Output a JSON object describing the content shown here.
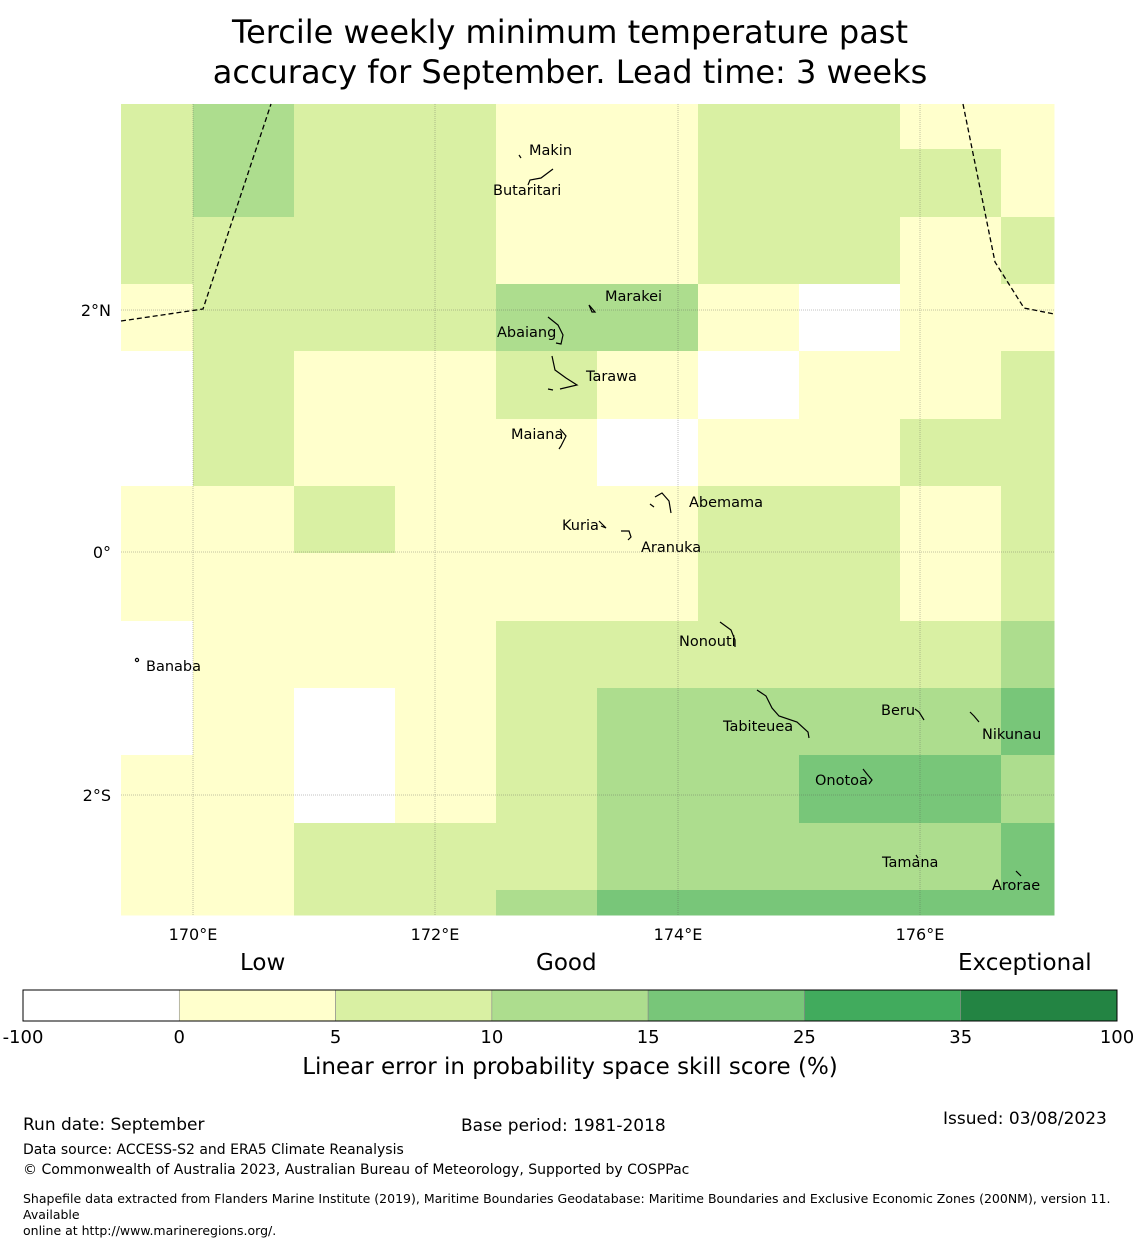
{
  "title_line1": "Tercile weekly minimum temperature past",
  "title_line2": "accuracy for September. Lead time: 3 weeks",
  "map": {
    "lon_ticks": [
      "170°E",
      "172°E",
      "174°E",
      "176°E"
    ],
    "lat_ticks": [
      "2°N",
      "0°",
      "2°S"
    ],
    "places": [
      "Makin",
      "Butaritari",
      "Marakei",
      "Abaiang",
      "Tarawa",
      "Maiana",
      "Abemama",
      "Kuria",
      "Aranuka",
      "Banaba",
      "Nonouti",
      "Beru",
      "Tabiteuea",
      "Nikunau",
      "Onotoa",
      "Tamana",
      "Arorae"
    ],
    "grid_category_index": [
      [
        2,
        3,
        2,
        2,
        1,
        1,
        2,
        2,
        1,
        1
      ],
      [
        2,
        3,
        2,
        2,
        1,
        1,
        2,
        2,
        2,
        1
      ],
      [
        2,
        2,
        2,
        2,
        1,
        1,
        2,
        2,
        1,
        2
      ],
      [
        1,
        2,
        2,
        2,
        3,
        3,
        1,
        0,
        1,
        1
      ],
      [
        0,
        2,
        1,
        1,
        2,
        1,
        0,
        1,
        1,
        2
      ],
      [
        0,
        2,
        1,
        1,
        1,
        0,
        1,
        1,
        2,
        2
      ],
      [
        1,
        1,
        2,
        1,
        1,
        1,
        2,
        2,
        1,
        2
      ],
      [
        1,
        1,
        1,
        1,
        1,
        1,
        2,
        2,
        1,
        2
      ],
      [
        0,
        1,
        1,
        1,
        2,
        2,
        2,
        2,
        2,
        3
      ],
      [
        0,
        1,
        0,
        1,
        2,
        3,
        3,
        3,
        3,
        4
      ],
      [
        1,
        1,
        0,
        1,
        2,
        3,
        3,
        4,
        4,
        3
      ],
      [
        1,
        1,
        2,
        2,
        2,
        3,
        3,
        3,
        3,
        4
      ],
      [
        1,
        1,
        2,
        2,
        3,
        4,
        4,
        4,
        4,
        4
      ]
    ]
  },
  "colorbar": {
    "category_labels": [
      "Low",
      "Good",
      "Exceptional"
    ],
    "tick_labels": [
      "-100",
      "0",
      "5",
      "10",
      "15",
      "25",
      "35",
      "100"
    ],
    "colors": [
      "#ffffff",
      "#ffffcc",
      "#d9f0a3",
      "#addd8e",
      "#78c679",
      "#41ab5d",
      "#238443"
    ],
    "title": "Linear error in probability space skill score (%)"
  },
  "footer": {
    "run_date": "Run date: September",
    "base_period": "Base period: 1981-2018",
    "issued": "Issued: 03/08/2023",
    "data_source": "Data source: ACCESS-S2 and ERA5 Climate Reanalysis",
    "copyright": "© Commonwealth of Australia 2023, Australian Bureau of Meteorology, Supported by COSPPac",
    "shapefile_line1": "Shapefile data extracted from Flanders Marine Institute (2019), Maritime Boundaries Geodatabase: Maritime Boundaries and Exclusive Economic Zones (200NM), version 11. Available",
    "shapefile_line2": "online at http://www.marineregions.org/."
  }
}
